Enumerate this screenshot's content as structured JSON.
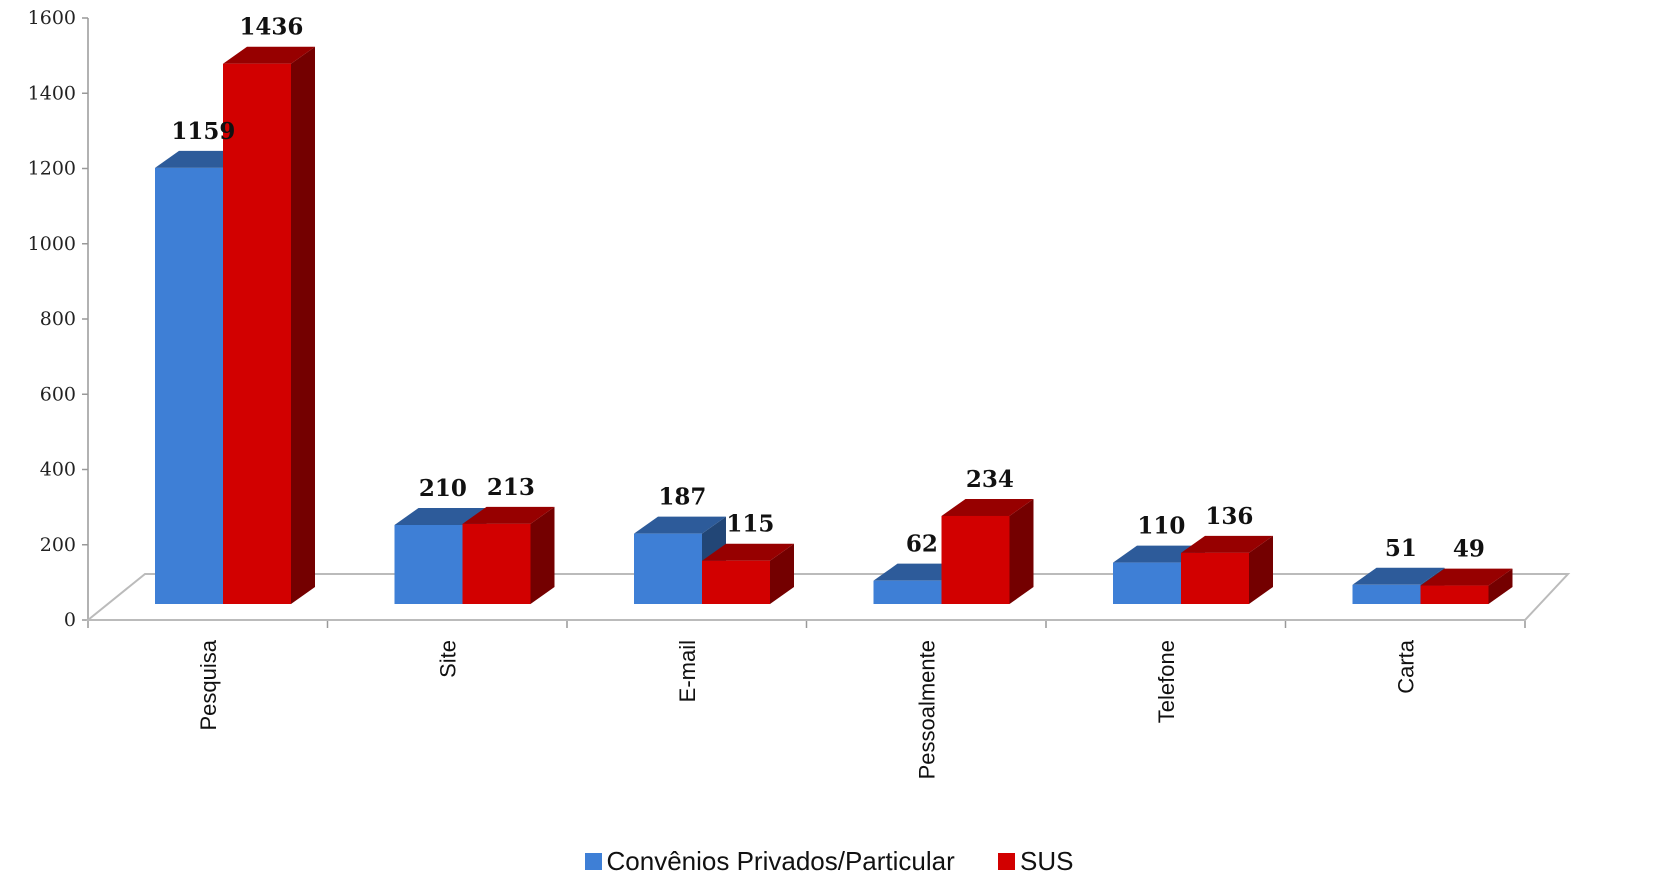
{
  "chart_data": {
    "type": "bar",
    "style": "3d-clustered",
    "categories": [
      "Pesquisa",
      "Site",
      "E-mail",
      "Pessoalmente",
      "Telefone",
      "Carta"
    ],
    "series": [
      {
        "name": "Convênios Privados/Particular",
        "color": "#3E7FD6",
        "values": [
          1159,
          210,
          187,
          62,
          110,
          51
        ]
      },
      {
        "name": "SUS",
        "color": "#D20000",
        "values": [
          1436,
          213,
          115,
          234,
          136,
          49
        ]
      }
    ],
    "ylim": [
      0,
      1600
    ],
    "yticks": [
      "0",
      "200",
      "400",
      "600",
      "800",
      "1000",
      "1200",
      "1400",
      "1600"
    ],
    "data_labels": true,
    "grid": false,
    "legend_position": "bottom"
  }
}
